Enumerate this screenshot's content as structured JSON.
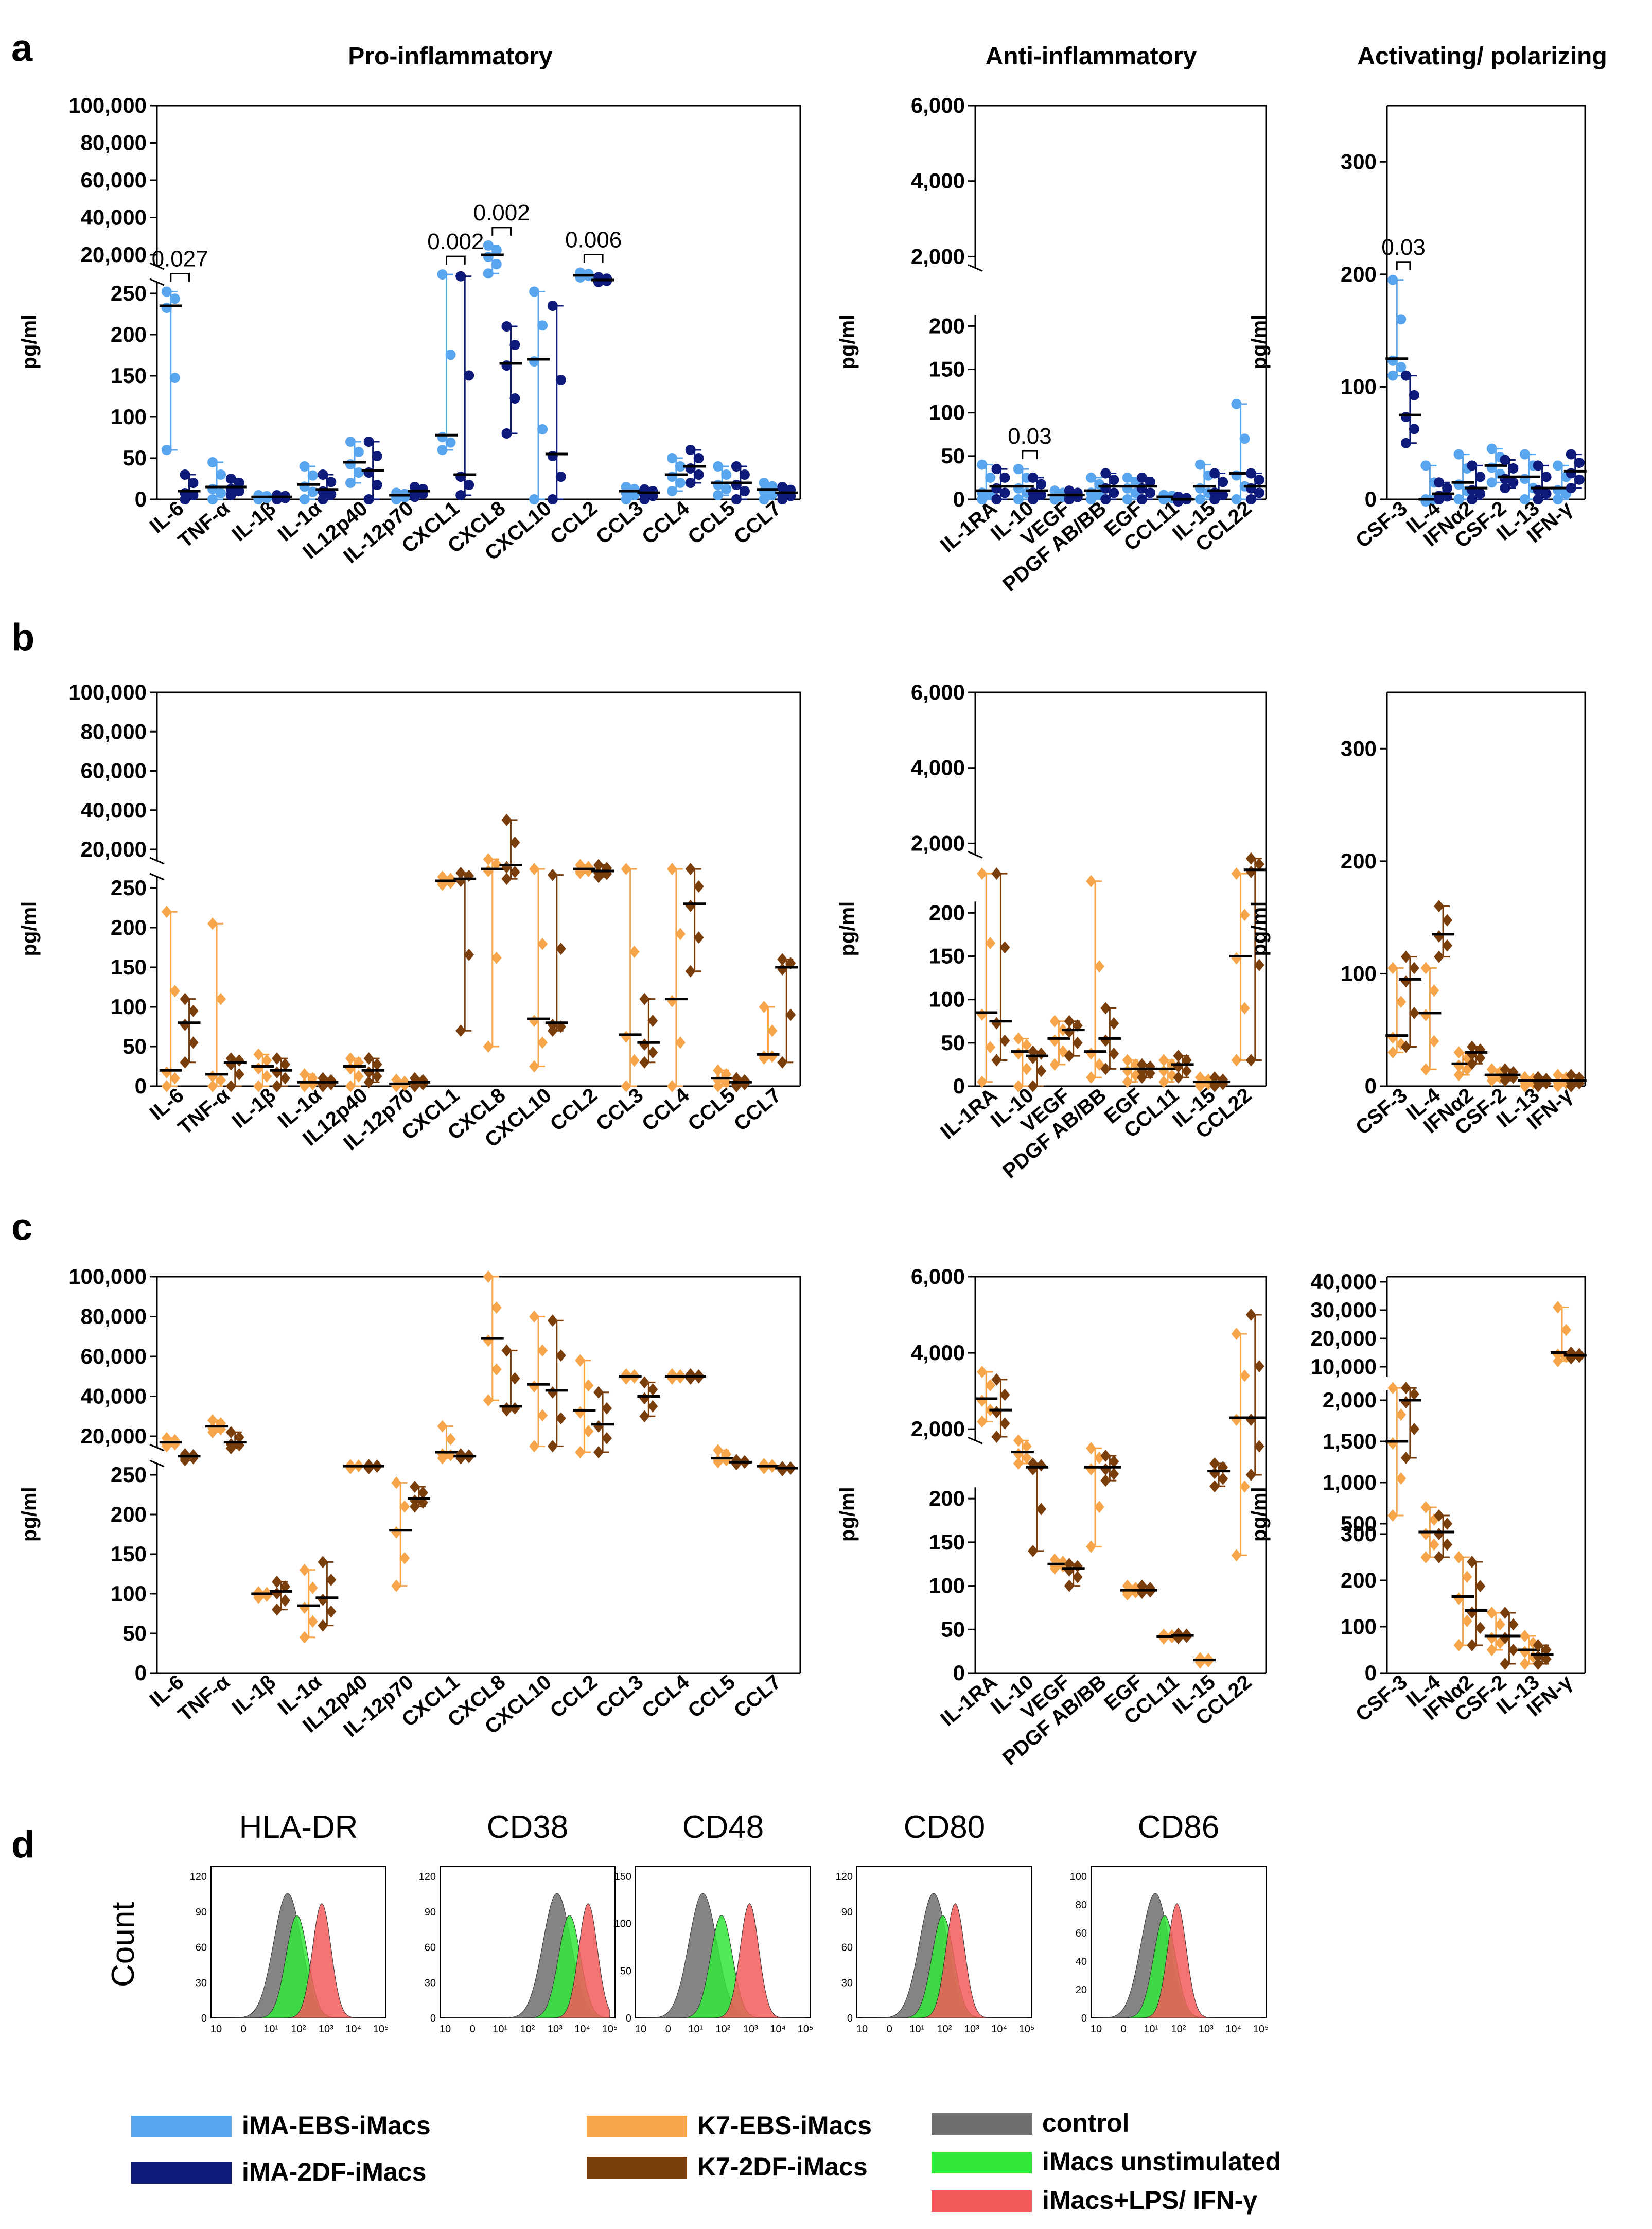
{
  "colors": {
    "iMA_EBS": "#5aa6ee",
    "iMA_2DF": "#0d1a7a",
    "K7_EBS": "#f6a54a",
    "K7_2DF": "#7a3d0c",
    "control": "#6f6f6f",
    "unstimulated": "#33e63a",
    "stimulated": "#f25a5a"
  },
  "legend": [
    {
      "label": "iMA-EBS-iMacs",
      "color": "#5aa6ee"
    },
    {
      "label": "iMA-2DF-iMacs",
      "color": "#0d1a7a"
    },
    {
      "label": "K7-EBS-iMacs",
      "color": "#f6a54a"
    },
    {
      "label": "K7-2DF-iMacs",
      "color": "#7a3d0c"
    },
    {
      "label": "control",
      "color": "#6f6f6f"
    },
    {
      "label": "iMacs unstimulated",
      "color": "#33e63a"
    },
    {
      "label": "iMacs+LPS/ IFN-γ",
      "color": "#f25a5a"
    }
  ],
  "chart_data": [
    {
      "panel": "a",
      "section": "Pro-inflammatory",
      "type": "scatter",
      "ylabel": "pg/ml",
      "y_ticks_upper": [
        "100,000",
        "80,000",
        "60,000",
        "40,000",
        "20,000"
      ],
      "y_ticks_lower": [
        "250",
        "200",
        "150",
        "100",
        "50",
        "0"
      ],
      "categories": [
        "IL-6",
        "TNF-α",
        "IL-1β",
        "IL-1α",
        "IL12p40",
        "IL-12p70",
        "CXCL1",
        "CXCL8",
        "CXCL10",
        "CCL2",
        "CCL3",
        "CCL4",
        "CCL5",
        "CCL7"
      ],
      "series": [
        {
          "name": "iMA-EBS-iMacs",
          "median": [
            235,
            15,
            3,
            18,
            45,
            5,
            78,
            20000,
            170,
            9000,
            10,
            30,
            20,
            12
          ],
          "low": [
            60,
            0,
            0,
            0,
            20,
            0,
            60,
            10000,
            0,
            8500,
            0,
            10,
            5,
            0
          ],
          "high": [
            270,
            45,
            5,
            40,
            70,
            8,
            9500,
            25000,
            270,
            10500,
            15,
            50,
            40,
            20
          ]
        },
        {
          "name": "iMA-2DF-iMacs",
          "median": [
            10,
            15,
            3,
            12,
            35,
            10,
            30,
            165,
            55,
            6500,
            8,
            40,
            20,
            8
          ],
          "low": [
            0,
            5,
            0,
            0,
            0,
            3,
            5,
            80,
            0,
            5500,
            0,
            20,
            0,
            0
          ],
          "high": [
            30,
            25,
            5,
            30,
            70,
            15,
            8500,
            210,
            235,
            8000,
            12,
            60,
            40,
            15
          ]
        }
      ],
      "annotations": [
        {
          "text": "0.027",
          "category": "IL-6"
        },
        {
          "text": "0.002",
          "category": "CXCL1"
        },
        {
          "text": "0.002",
          "category": "CXCL8"
        },
        {
          "text": "0.006",
          "category": "CCL2"
        }
      ]
    },
    {
      "panel": "a",
      "section": "Anti-inflammatory",
      "type": "scatter",
      "ylabel": "pg/ml",
      "y_ticks_upper": [
        "6,000",
        "4,000",
        "2,000"
      ],
      "y_ticks_lower": [
        "200",
        "150",
        "100",
        "50",
        "0"
      ],
      "categories": [
        "IL-1RA",
        "IL-10",
        "VEGF",
        "PDGF AB/BB",
        "EGF",
        "CCL11",
        "IL-15",
        "CCL22"
      ],
      "series": [
        {
          "name": "iMA-EBS-iMacs",
          "median": [
            10,
            15,
            5,
            10,
            15,
            3,
            15,
            30
          ],
          "low": [
            0,
            0,
            0,
            0,
            0,
            0,
            0,
            0
          ],
          "high": [
            40,
            35,
            10,
            25,
            25,
            5,
            40,
            110
          ]
        },
        {
          "name": "iMA-2DF-iMacs",
          "median": [
            15,
            10,
            5,
            15,
            15,
            0,
            10,
            15
          ],
          "low": [
            0,
            0,
            0,
            0,
            0,
            0,
            0,
            0
          ],
          "high": [
            35,
            25,
            10,
            30,
            25,
            3,
            30,
            30
          ]
        }
      ],
      "annotations": [
        {
          "text": "0.03",
          "category": "IL-10"
        }
      ]
    },
    {
      "panel": "a",
      "section": "Activating/ polarizing",
      "type": "scatter",
      "ylabel": "pg/ml",
      "y_ticks_lower": [
        "300",
        "200",
        "100",
        "0"
      ],
      "categories": [
        "CSF-3",
        "IL-4",
        "IFNα2",
        "CSF-2",
        "IL-13",
        "IFN-γ"
      ],
      "series": [
        {
          "name": "iMA-EBS-iMacs",
          "median": [
            125,
            0,
            15,
            30,
            20,
            10
          ],
          "low": [
            110,
            0,
            0,
            15,
            0,
            0
          ],
          "high": [
            195,
            30,
            40,
            45,
            40,
            30
          ]
        },
        {
          "name": "iMA-2DF-iMacs",
          "median": [
            75,
            5,
            10,
            20,
            10,
            25
          ],
          "low": [
            50,
            0,
            0,
            10,
            0,
            10
          ],
          "high": [
            110,
            15,
            30,
            35,
            30,
            40
          ]
        }
      ],
      "annotations": [
        {
          "text": "0.03",
          "category": "CSF-3"
        }
      ]
    },
    {
      "panel": "b",
      "section": "Pro-inflammatory",
      "type": "scatter",
      "ylabel": "pg/ml",
      "y_ticks_upper": [
        "100,000",
        "80,000",
        "60,000",
        "40,000",
        "20,000"
      ],
      "y_ticks_lower": [
        "250",
        "200",
        "150",
        "100",
        "50",
        "0"
      ],
      "categories": [
        "IL-6",
        "TNF-α",
        "IL-1β",
        "IL-1α",
        "IL12p40",
        "IL-12p70",
        "CXCL1",
        "CXCL8",
        "CXCL10",
        "CCL2",
        "CCL3",
        "CCL4",
        "CCL5",
        "CCL7"
      ],
      "series": [
        {
          "name": "K7-EBS-iMacs",
          "median": [
            20,
            15,
            25,
            5,
            25,
            3,
            4000,
            10000,
            85,
            10000,
            65,
            110,
            10,
            40
          ],
          "low": [
            0,
            0,
            0,
            0,
            0,
            0,
            2000,
            50,
            25,
            8000,
            0,
            0,
            0,
            35
          ],
          "high": [
            220,
            205,
            40,
            15,
            35,
            8,
            6000,
            15000,
            10000,
            12000,
            10000,
            10000,
            20,
            100
          ]
        },
        {
          "name": "K7-2DF-iMacs",
          "median": [
            80,
            30,
            20,
            5,
            20,
            5,
            5000,
            12000,
            80,
            9000,
            55,
            230,
            5,
            150
          ],
          "low": [
            30,
            0,
            0,
            0,
            5,
            0,
            70,
            5000,
            70,
            6000,
            30,
            145,
            0,
            30
          ],
          "high": [
            110,
            35,
            35,
            10,
            35,
            10,
            8000,
            35000,
            7000,
            12000,
            110,
            10000,
            10,
            160
          ]
        }
      ]
    },
    {
      "panel": "b",
      "section": "Anti-inflammatory",
      "type": "scatter",
      "ylabel": "pg/ml",
      "y_ticks_upper": [
        "6,000",
        "4,000",
        "2,000"
      ],
      "y_ticks_lower": [
        "200",
        "150",
        "100",
        "50",
        "0"
      ],
      "categories": [
        "IL-1RA",
        "IL-10",
        "VEGF",
        "PDGF AB/BB",
        "EGF",
        "CCL11",
        "IL-15",
        "CCL22"
      ],
      "series": [
        {
          "name": "K7-EBS-iMacs",
          "median": [
            85,
            40,
            55,
            40,
            20,
            20,
            5,
            150
          ],
          "low": [
            5,
            0,
            25,
            10,
            5,
            5,
            0,
            30
          ],
          "high": [
            1200,
            55,
            75,
            1000,
            30,
            30,
            10,
            1200
          ]
        },
        {
          "name": "K7-2DF-iMacs",
          "median": [
            75,
            35,
            65,
            55,
            20,
            25,
            5,
            1300
          ],
          "low": [
            30,
            0,
            35,
            20,
            10,
            10,
            0,
            30
          ],
          "high": [
            1200,
            40,
            75,
            90,
            25,
            35,
            10,
            1600
          ]
        }
      ]
    },
    {
      "panel": "b",
      "section": "Activating/ polarizing",
      "type": "scatter",
      "ylabel": "pg/ml",
      "y_ticks_lower": [
        "300",
        "200",
        "100",
        "0"
      ],
      "categories": [
        "CSF-3",
        "IL-4",
        "IFNα2",
        "CSF-2",
        "IL-13",
        "IFN-γ"
      ],
      "series": [
        {
          "name": "K7-EBS-iMacs",
          "median": [
            45,
            65,
            20,
            10,
            5,
            5
          ],
          "low": [
            30,
            15,
            10,
            5,
            0,
            0
          ],
          "high": [
            105,
            105,
            30,
            15,
            8,
            10
          ]
        },
        {
          "name": "K7-2DF-iMacs",
          "median": [
            95,
            135,
            30,
            10,
            5,
            5
          ],
          "low": [
            35,
            115,
            20,
            5,
            0,
            0
          ],
          "high": [
            115,
            160,
            35,
            15,
            8,
            10
          ]
        }
      ]
    },
    {
      "panel": "c",
      "section": "Pro-inflammatory",
      "type": "scatter",
      "ylabel": "pg/ml",
      "y_ticks_upper": [
        "100,000",
        "80,000",
        "60,000",
        "40,000",
        "20,000"
      ],
      "y_ticks_lower": [
        "250",
        "200",
        "150",
        "100",
        "50",
        "0"
      ],
      "categories": [
        "IL-6",
        "TNF-α",
        "IL-1β",
        "IL-1α",
        "IL12p40",
        "IL-12p70",
        "CXCL1",
        "CXCL8",
        "CXCL10",
        "CCL2",
        "CCL3",
        "CCL4",
        "CCL5",
        "CCL7"
      ],
      "series": [
        {
          "name": "K7-EBS-iMacs",
          "median": [
            17000,
            25000,
            100,
            85,
            5000,
            180,
            12000,
            69000,
            46000,
            33000,
            50000,
            50000,
            9000,
            5000
          ],
          "low": [
            15000,
            22000,
            95,
            45,
            5000,
            110,
            9000,
            38000,
            15000,
            12000,
            49000,
            49000,
            7000,
            4500
          ],
          "high": [
            19000,
            28000,
            102,
            130,
            5500,
            240,
            25000,
            100000,
            80000,
            58000,
            51000,
            51000,
            13000,
            6000
          ]
        },
        {
          "name": "K7-2DF-iMacs",
          "median": [
            10000,
            17000,
            103,
            95,
            5000,
            220,
            10000,
            35000,
            43000,
            26000,
            40000,
            50000,
            7000,
            4000
          ],
          "low": [
            8000,
            14000,
            80,
            60,
            4500,
            210,
            9000,
            33000,
            15000,
            12000,
            30000,
            49000,
            6500,
            3500
          ],
          "high": [
            11000,
            22000,
            115,
            140,
            5500,
            235,
            11000,
            63000,
            78000,
            42000,
            47000,
            51000,
            8000,
            4500
          ]
        }
      ]
    },
    {
      "panel": "c",
      "section": "Anti-inflammatory",
      "type": "scatter",
      "ylabel": "pg/ml",
      "y_ticks_upper": [
        "6,000",
        "4,000",
        "2,000"
      ],
      "y_ticks_lower": [
        "200",
        "150",
        "100",
        "50",
        "0"
      ],
      "categories": [
        "IL-1RA",
        "IL-10",
        "VEGF",
        "PDGF AB/BB",
        "EGF",
        "CCL11",
        "IL-15",
        "CCL22"
      ],
      "series": [
        {
          "name": "K7-EBS-iMacs",
          "median": [
            2800,
            1400,
            125,
            1000,
            95,
            42,
            15,
            2300
          ],
          "low": [
            2200,
            1100,
            120,
            145,
            90,
            40,
            12,
            135
          ],
          "high": [
            3500,
            1700,
            130,
            1500,
            100,
            44,
            17,
            4500
          ]
        },
        {
          "name": "K7-2DF-iMacs",
          "median": [
            2500,
            1000,
            120,
            1000,
            95,
            43,
            900,
            2300
          ],
          "low": [
            1800,
            140,
            100,
            650,
            92,
            40,
            500,
            800
          ],
          "high": [
            3300,
            1100,
            125,
            1300,
            100,
            45,
            1100,
            5000
          ]
        }
      ]
    },
    {
      "panel": "c",
      "section": "Activating/ polarizing",
      "type": "scatter",
      "ylabel": "pg/ml",
      "y_ticks_upper": [
        "40,000",
        "30,000",
        "20,000",
        "10,000"
      ],
      "y_ticks_lower": [
        "2,000",
        "1,500",
        "1,000",
        "500",
        "300",
        "200",
        "100",
        "0"
      ],
      "categories": [
        "CSF-3",
        "IL-4",
        "IFNα2",
        "CSF-2",
        "IL-13",
        "IFN-γ"
      ],
      "series": [
        {
          "name": "K7-EBS-iMacs",
          "median": [
            1500,
            400,
            165,
            80,
            50,
            15000
          ],
          "low": [
            600,
            250,
            60,
            50,
            20,
            12000
          ],
          "high": [
            2500,
            700,
            250,
            130,
            80,
            31000
          ]
        },
        {
          "name": "K7-2DF-iMacs",
          "median": [
            2000,
            400,
            135,
            80,
            40,
            14000
          ],
          "low": [
            1300,
            250,
            60,
            20,
            20,
            13000
          ],
          "high": [
            2500,
            600,
            240,
            130,
            60,
            15000
          ]
        }
      ]
    },
    {
      "panel": "d",
      "type": "histogram",
      "ylabel": "Count",
      "x_ticks": [
        "10",
        "0",
        "10¹",
        "10²",
        "10³",
        "10⁴",
        "10⁵"
      ],
      "plots": [
        {
          "title": "HLA-DR",
          "y_ticks": [
            "120",
            "90",
            "60",
            "30",
            "0"
          ],
          "peaks": {
            "control": 2.3,
            "unstimulated": 2.6,
            "stimulated": 3.4
          }
        },
        {
          "title": "CD38",
          "y_ticks": [
            "120",
            "90",
            "60",
            "30",
            "0"
          ],
          "peaks": {
            "control": 3.6,
            "unstimulated": 4.0,
            "stimulated": 4.6
          }
        },
        {
          "title": "CD48",
          "y_ticks": [
            "150",
            "100",
            "50",
            "0"
          ],
          "peaks": {
            "control": 2.0,
            "unstimulated": 2.6,
            "stimulated": 3.5
          }
        },
        {
          "title": "CD80",
          "y_ticks": [
            "120",
            "90",
            "60",
            "30",
            "0"
          ],
          "peaks": {
            "control": 2.3,
            "unstimulated": 2.6,
            "stimulated": 3.0
          }
        },
        {
          "title": "CD86",
          "y_ticks": [
            "100",
            "80",
            "60",
            "40",
            "20",
            "0"
          ],
          "peaks": {
            "control": 1.9,
            "unstimulated": 2.2,
            "stimulated": 2.6
          }
        }
      ]
    }
  ],
  "panel_letters": [
    "a",
    "b",
    "c",
    "d"
  ],
  "section_titles": [
    "Pro-inflammatory",
    "Anti-inflammatory",
    "Activating/ polarizing"
  ]
}
